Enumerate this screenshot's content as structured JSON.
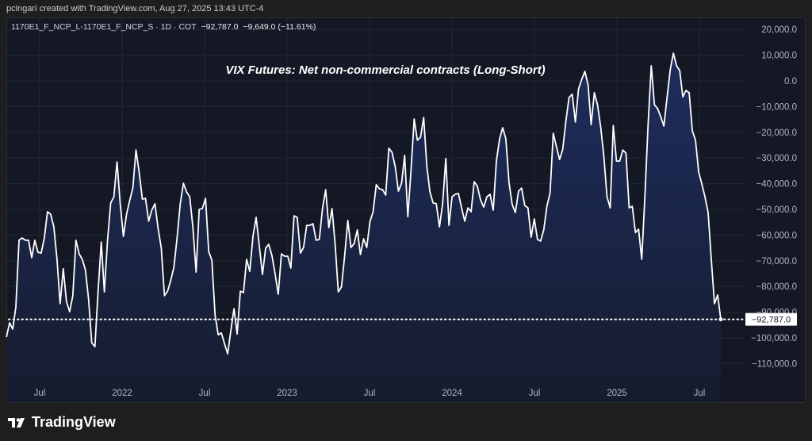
{
  "header": {
    "credit": "pcingari created with TradingView.com, Aug 27, 2025 13:43 UTC-4"
  },
  "legend": {
    "symbol": "1170E1_F_NCP_L-1170E1_F_NCP_S · 1D · COT",
    "last": "−92,787.0",
    "change": "−9,649.0 (−11.61%)"
  },
  "footer": {
    "brand": "TradingView"
  },
  "colors": {
    "line": "#ffffff",
    "fill_top": "#1e2d5e",
    "fill_bottom": "#161c2e",
    "background": "#141824",
    "grid": "#222736",
    "axis_text": "#b2b5be"
  },
  "chart_data": {
    "type": "area",
    "title": "VIX Futures: Net non-commercial contracts (Long-Short)",
    "xlabel": "",
    "ylabel": "",
    "frequency": "weekly",
    "start_date": "2021-04-20",
    "end_date": "2025-08-19",
    "ylim": [
      -120000,
      25000
    ],
    "grid": true,
    "last_value": -92787.0,
    "last_value_label": "−92,787.0",
    "y_ticks": [
      20000,
      10000,
      0,
      -10000,
      -20000,
      -30000,
      -40000,
      -50000,
      -60000,
      -70000,
      -80000,
      -90000,
      -100000,
      -110000
    ],
    "y_tick_labels": [
      "20,000.0",
      "10,000.0",
      "0.0",
      "−10,000.0",
      "−20,000.0",
      "−30,000.0",
      "−40,000.0",
      "−50,000.0",
      "−60,000.0",
      "−70,000.0",
      "−80,000.0",
      "−90,000.0",
      "−100,000.0",
      "−110,000.0"
    ],
    "x_ticks": [
      2021.5,
      2022.0,
      2022.5,
      2023.0,
      2023.5,
      2024.0,
      2024.5,
      2025.0,
      2025.5
    ],
    "x_tick_labels": [
      "Jul",
      "2022",
      "Jul",
      "2023",
      "Jul",
      "2024",
      "Jul",
      "2025",
      "Jul"
    ],
    "values": [
      -99700,
      -94100,
      -96600,
      -88000,
      -62000,
      -61100,
      -62000,
      -62000,
      -68800,
      -62000,
      -66700,
      -67000,
      -61100,
      -50900,
      -51900,
      -56800,
      -69400,
      -86700,
      -73100,
      -85800,
      -89800,
      -83600,
      -62000,
      -67300,
      -69400,
      -73500,
      -84900,
      -101900,
      -103400,
      -81800,
      -62700,
      -82100,
      -62000,
      -47500,
      -45100,
      -31500,
      -47800,
      -60500,
      -51900,
      -46600,
      -41700,
      -26900,
      -35500,
      -46000,
      -45700,
      -54600,
      -50300,
      -47800,
      -57400,
      -65100,
      -83600,
      -81800,
      -77500,
      -72500,
      -61100,
      -47800,
      -39800,
      -43200,
      -45100,
      -57100,
      -74400,
      -50000,
      -49700,
      -45700,
      -66400,
      -69800,
      -91000,
      -98800,
      -98100,
      -102200,
      -106200,
      -97200,
      -88600,
      -98500,
      -81800,
      -82400,
      -69400,
      -74100,
      -60500,
      -53100,
      -64200,
      -75300,
      -65100,
      -63600,
      -67900,
      -75000,
      -83000,
      -67300,
      -68200,
      -68200,
      -72800,
      -52500,
      -53100,
      -67000,
      -64800,
      -56200,
      -56200,
      -55600,
      -62000,
      -61700,
      -49700,
      -42300,
      -57100,
      -49700,
      -63300,
      -82100,
      -80200,
      -68200,
      -54300,
      -64800,
      -63300,
      -58000,
      -67600,
      -61400,
      -64800,
      -54900,
      -50900,
      -40400,
      -42000,
      -42300,
      -44400,
      -26200,
      -27800,
      -33300,
      -42900,
      -39800,
      -29000,
      -52800,
      -34900,
      -14800,
      -23100,
      -21900,
      -14200,
      -33300,
      -43200,
      -47500,
      -47800,
      -56800,
      -47800,
      -30200,
      -56200,
      -45100,
      -44100,
      -43800,
      -49400,
      -54600,
      -49400,
      -50900,
      -39200,
      -41000,
      -46300,
      -49100,
      -45100,
      -44100,
      -50300,
      -31200,
      -22800,
      -18200,
      -22500,
      -39500,
      -48100,
      -51200,
      -42900,
      -41700,
      -48500,
      -49400,
      -60800,
      -53700,
      -61700,
      -62300,
      -58000,
      -48800,
      -43500,
      -20400,
      -25600,
      -30600,
      -26500,
      -15700,
      -6500,
      -5200,
      -16000,
      -3100,
      600,
      3700,
      -1500,
      -17000,
      -4600,
      -9300,
      -17900,
      -29300,
      -45100,
      -49400,
      -17300,
      -31200,
      -31200,
      -26900,
      -28100,
      -49400,
      -48800,
      -59000,
      -57700,
      -69400,
      -44800,
      -17000,
      5900,
      -9300,
      -10800,
      -13900,
      -17600,
      -6500,
      4300,
      10800,
      5900,
      4000,
      -6200,
      -3700,
      -4600,
      -19400,
      -23100,
      -35500,
      -40100,
      -45100,
      -51200,
      -69400,
      -86700,
      -83300,
      -92787
    ]
  }
}
